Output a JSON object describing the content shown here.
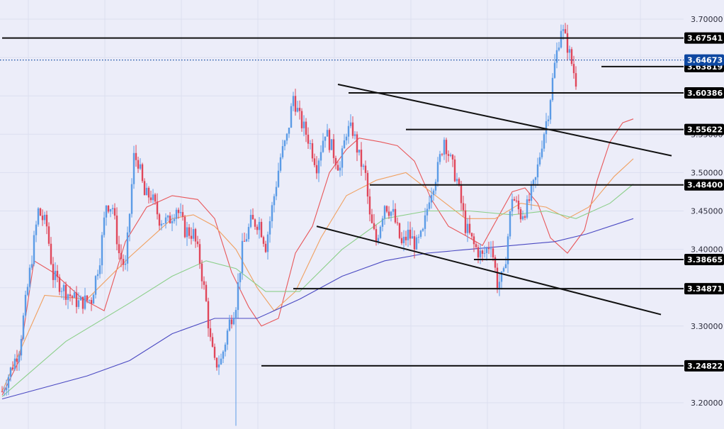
{
  "chart_data": {
    "type": "candlestick",
    "ylim": [
      3.18,
      3.72
    ],
    "x_axis_labels": [],
    "y_ticks": [
      "3.70000",
      "3.65000",
      "3.60000",
      "3.55000",
      "3.50000",
      "3.45000",
      "3.40000",
      "3.35000",
      "3.30000",
      "3.25000",
      "3.20000"
    ],
    "y_tick_values": [
      3.7,
      3.65,
      3.6,
      3.55,
      3.5,
      3.45,
      3.4,
      3.35,
      3.3,
      3.25,
      3.2
    ],
    "current_price": {
      "value": 3.64673,
      "label": "3.64673",
      "color": "#0d47a1"
    },
    "horizontal_levels": [
      {
        "label": "3.67541",
        "value": 3.67541
      },
      {
        "label": "3.63819",
        "value": 3.63819
      },
      {
        "label": "3.60386",
        "value": 3.60386
      },
      {
        "label": "3.55622",
        "value": 3.55622
      },
      {
        "label": "3.48400",
        "value": 3.484
      },
      {
        "label": "3.38665",
        "value": 3.38665
      },
      {
        "label": "3.34871",
        "value": 3.34871
      },
      {
        "label": "3.24822",
        "value": 3.24822
      }
    ],
    "trendlines": [
      {
        "name": "upper-channel",
        "from": [
          158,
          3.615
        ],
        "to": [
          315,
          3.522
        ]
      },
      {
        "name": "lower-channel",
        "from": [
          148,
          3.43
        ],
        "to": [
          310,
          3.315
        ]
      }
    ],
    "moving_averages": [
      {
        "name": "ma-fast",
        "color": "#e8575a",
        "points": [
          [
            0,
            3.21
          ],
          [
            8,
            3.255
          ],
          [
            15,
            3.385
          ],
          [
            24,
            3.37
          ],
          [
            38,
            3.335
          ],
          [
            48,
            3.32
          ],
          [
            58,
            3.41
          ],
          [
            68,
            3.455
          ],
          [
            80,
            3.47
          ],
          [
            92,
            3.465
          ],
          [
            100,
            3.44
          ],
          [
            108,
            3.37
          ],
          [
            116,
            3.325
          ],
          [
            122,
            3.3
          ],
          [
            130,
            3.31
          ],
          [
            138,
            3.395
          ],
          [
            146,
            3.43
          ],
          [
            154,
            3.5
          ],
          [
            162,
            3.53
          ],
          [
            168,
            3.545
          ],
          [
            178,
            3.54
          ],
          [
            186,
            3.535
          ],
          [
            194,
            3.515
          ],
          [
            202,
            3.465
          ],
          [
            210,
            3.43
          ],
          [
            218,
            3.418
          ],
          [
            226,
            3.405
          ],
          [
            234,
            3.445
          ],
          [
            240,
            3.475
          ],
          [
            246,
            3.48
          ],
          [
            252,
            3.46
          ],
          [
            258,
            3.415
          ],
          [
            266,
            3.395
          ],
          [
            274,
            3.425
          ],
          [
            280,
            3.49
          ],
          [
            286,
            3.54
          ],
          [
            292,
            3.565
          ],
          [
            297,
            3.57
          ]
        ]
      },
      {
        "name": "ma-mid",
        "color": "#f0a060",
        "points": [
          [
            0,
            3.215
          ],
          [
            20,
            3.34
          ],
          [
            40,
            3.335
          ],
          [
            60,
            3.39
          ],
          [
            80,
            3.44
          ],
          [
            90,
            3.445
          ],
          [
            100,
            3.43
          ],
          [
            110,
            3.4
          ],
          [
            120,
            3.35
          ],
          [
            128,
            3.32
          ],
          [
            138,
            3.345
          ],
          [
            150,
            3.415
          ],
          [
            162,
            3.47
          ],
          [
            176,
            3.49
          ],
          [
            190,
            3.5
          ],
          [
            204,
            3.47
          ],
          [
            218,
            3.44
          ],
          [
            232,
            3.44
          ],
          [
            244,
            3.46
          ],
          [
            256,
            3.455
          ],
          [
            266,
            3.44
          ],
          [
            276,
            3.455
          ],
          [
            288,
            3.495
          ],
          [
            297,
            3.518
          ]
        ]
      },
      {
        "name": "ma-slow",
        "color": "#8ccf8a",
        "points": [
          [
            0,
            3.208
          ],
          [
            30,
            3.28
          ],
          [
            60,
            3.33
          ],
          [
            80,
            3.365
          ],
          [
            96,
            3.385
          ],
          [
            110,
            3.375
          ],
          [
            124,
            3.345
          ],
          [
            140,
            3.345
          ],
          [
            160,
            3.4
          ],
          [
            180,
            3.44
          ],
          [
            200,
            3.45
          ],
          [
            220,
            3.45
          ],
          [
            240,
            3.445
          ],
          [
            256,
            3.45
          ],
          [
            270,
            3.44
          ],
          [
            286,
            3.46
          ],
          [
            297,
            3.485
          ]
        ]
      },
      {
        "name": "ma-long",
        "color": "#4a49c2",
        "points": [
          [
            0,
            3.205
          ],
          [
            40,
            3.235
          ],
          [
            60,
            3.255
          ],
          [
            80,
            3.29
          ],
          [
            100,
            3.31
          ],
          [
            120,
            3.31
          ],
          [
            140,
            3.335
          ],
          [
            160,
            3.365
          ],
          [
            180,
            3.385
          ],
          [
            200,
            3.395
          ],
          [
            220,
            3.4
          ],
          [
            240,
            3.405
          ],
          [
            260,
            3.41
          ],
          [
            275,
            3.42
          ],
          [
            297,
            3.44
          ]
        ]
      }
    ],
    "candles": [],
    "candle_path": [
      [
        0,
        3.215
      ],
      [
        8,
        3.27
      ],
      [
        12,
        3.35
      ],
      [
        17,
        3.45
      ],
      [
        21,
        3.43
      ],
      [
        24,
        3.365
      ],
      [
        30,
        3.345
      ],
      [
        36,
        3.33
      ],
      [
        42,
        3.335
      ],
      [
        46,
        3.39
      ],
      [
        49,
        3.46
      ],
      [
        52,
        3.455
      ],
      [
        55,
        3.395
      ],
      [
        58,
        3.375
      ],
      [
        62,
        3.52
      ],
      [
        64,
        3.515
      ],
      [
        67,
        3.47
      ],
      [
        70,
        3.47
      ],
      [
        74,
        3.44
      ],
      [
        78,
        3.435
      ],
      [
        82,
        3.455
      ],
      [
        86,
        3.425
      ],
      [
        90,
        3.42
      ],
      [
        93,
        3.385
      ],
      [
        96,
        3.33
      ],
      [
        98,
        3.28
      ],
      [
        100,
        3.25
      ],
      [
        103,
        3.255
      ],
      [
        107,
        3.305
      ],
      [
        110,
        3.33
      ],
      [
        113,
        3.4
      ],
      [
        117,
        3.435
      ],
      [
        121,
        3.435
      ],
      [
        124,
        3.405
      ],
      [
        128,
        3.47
      ],
      [
        131,
        3.52
      ],
      [
        134,
        3.545
      ],
      [
        137,
        3.6
      ],
      [
        140,
        3.57
      ],
      [
        144,
        3.545
      ],
      [
        148,
        3.51
      ],
      [
        152,
        3.555
      ],
      [
        156,
        3.525
      ],
      [
        159,
        3.505
      ],
      [
        162,
        3.555
      ],
      [
        165,
        3.555
      ],
      [
        168,
        3.52
      ],
      [
        171,
        3.495
      ],
      [
        173,
        3.44
      ],
      [
        176,
        3.41
      ],
      [
        180,
        3.46
      ],
      [
        184,
        3.445
      ],
      [
        188,
        3.405
      ],
      [
        191,
        3.42
      ],
      [
        195,
        3.405
      ],
      [
        198,
        3.42
      ],
      [
        201,
        3.47
      ],
      [
        205,
        3.505
      ],
      [
        208,
        3.545
      ],
      [
        211,
        3.515
      ],
      [
        214,
        3.49
      ],
      [
        218,
        3.43
      ],
      [
        222,
        3.405
      ],
      [
        226,
        3.39
      ],
      [
        230,
        3.41
      ],
      [
        233,
        3.355
      ],
      [
        236,
        3.365
      ],
      [
        240,
        3.47
      ],
      [
        244,
        3.445
      ],
      [
        247,
        3.455
      ],
      [
        251,
        3.49
      ],
      [
        254,
        3.54
      ],
      [
        257,
        3.58
      ],
      [
        260,
        3.64
      ],
      [
        263,
        3.69
      ],
      [
        266,
        3.665
      ],
      [
        270,
        3.62
      ]
    ]
  }
}
